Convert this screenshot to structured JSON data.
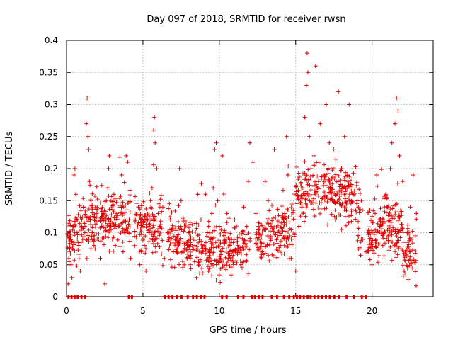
{
  "chart_data": {
    "type": "scatter",
    "title": "Day 097 of 2018, SRMTID for receiver rwsn",
    "xlabel": "GPS time / hours",
    "ylabel": "SRMTID / TECUs",
    "xlim": [
      0,
      24
    ],
    "ylim": [
      0,
      0.4
    ],
    "x_ticks": [
      0,
      5,
      10,
      15,
      20
    ],
    "x_tick_labels": [
      "0",
      "5",
      "10",
      "15",
      "20"
    ],
    "y_ticks": [
      0,
      0.05,
      0.1,
      0.15,
      0.2,
      0.25,
      0.3,
      0.35,
      0.4
    ],
    "y_tick_labels": [
      "0",
      "0.05",
      "0.1",
      "0.15",
      "0.2",
      "0.25",
      "0.3",
      "0.35",
      "0.4"
    ],
    "grid": true,
    "marker": "+",
    "series_color": "#e00000",
    "x_span": [
      0.05,
      22.9
    ],
    "points": [
      [
        0.1,
        0.02
      ],
      [
        0.15,
        0.06
      ],
      [
        0.2,
        0.09
      ],
      [
        0.3,
        0.05
      ],
      [
        0.35,
        0.03
      ],
      [
        0.45,
        0.11
      ],
      [
        0.5,
        0.19
      ],
      [
        0.55,
        0.2
      ],
      [
        0.6,
        0.16
      ],
      [
        0.7,
        0.12
      ],
      [
        0.8,
        0.08
      ],
      [
        0.9,
        0.04
      ],
      [
        1.0,
        0.12
      ],
      [
        1.1,
        0.14
      ],
      [
        1.2,
        0.1
      ],
      [
        1.3,
        0.27
      ],
      [
        1.35,
        0.31
      ],
      [
        1.4,
        0.25
      ],
      [
        1.45,
        0.23
      ],
      [
        1.5,
        0.18
      ],
      [
        1.6,
        0.15
      ],
      [
        1.7,
        0.1
      ],
      [
        1.8,
        0.08
      ],
      [
        1.9,
        0.12
      ],
      [
        2.0,
        0.14
      ],
      [
        2.1,
        0.09
      ],
      [
        2.2,
        0.06
      ],
      [
        2.3,
        0.11
      ],
      [
        2.4,
        0.13
      ],
      [
        2.5,
        0.02
      ],
      [
        2.6,
        0.15
      ],
      [
        2.7,
        0.17
      ],
      [
        2.75,
        0.2
      ],
      [
        2.8,
        0.22
      ],
      [
        2.9,
        0.12
      ],
      [
        3.0,
        0.09
      ],
      [
        3.1,
        0.16
      ],
      [
        3.2,
        0.08
      ],
      [
        3.3,
        0.13
      ],
      [
        3.4,
        0.11
      ],
      [
        3.5,
        0.14
      ],
      [
        3.6,
        0.19
      ],
      [
        3.7,
        0.07
      ],
      [
        3.8,
        0.1
      ],
      [
        3.9,
        0.22
      ],
      [
        4.0,
        0.21
      ],
      [
        4.1,
        0.12
      ],
      [
        4.2,
        0.06
      ],
      [
        4.5,
        0.12
      ],
      [
        4.6,
        0.09
      ],
      [
        4.7,
        0.14
      ],
      [
        4.8,
        0.05
      ],
      [
        4.9,
        0.07
      ],
      [
        5.0,
        0.11
      ],
      [
        5.1,
        0.08
      ],
      [
        5.2,
        0.04
      ],
      [
        5.3,
        0.12
      ],
      [
        5.4,
        0.1
      ],
      [
        5.5,
        0.15
      ],
      [
        5.6,
        0.17
      ],
      [
        5.7,
        0.26
      ],
      [
        5.75,
        0.28
      ],
      [
        5.8,
        0.24
      ],
      [
        5.9,
        0.2
      ],
      [
        6.0,
        0.13
      ],
      [
        6.1,
        0.11
      ],
      [
        6.2,
        0.09
      ],
      [
        6.3,
        0.14
      ],
      [
        6.4,
        0.06
      ],
      [
        6.6,
        0.1
      ],
      [
        6.8,
        0.12
      ],
      [
        7.0,
        0.07
      ],
      [
        7.2,
        0.09
      ],
      [
        7.4,
        0.2
      ],
      [
        7.5,
        0.15
      ],
      [
        7.7,
        0.05
      ],
      [
        7.9,
        0.08
      ],
      [
        8.0,
        0.1
      ],
      [
        8.1,
        0.06
      ],
      [
        8.3,
        0.09
      ],
      [
        8.5,
        0.03
      ],
      [
        8.6,
        0.16
      ],
      [
        8.8,
        0.12
      ],
      [
        9.0,
        0.08
      ],
      [
        9.1,
        0.16
      ],
      [
        9.3,
        0.11
      ],
      [
        9.5,
        0.13
      ],
      [
        9.6,
        0.17
      ],
      [
        9.7,
        0.23
      ],
      [
        9.8,
        0.24
      ],
      [
        9.9,
        0.15
      ],
      [
        10.0,
        0.11
      ],
      [
        10.1,
        0.07
      ],
      [
        10.2,
        0.22
      ],
      [
        10.3,
        0.1
      ],
      [
        10.5,
        0.13
      ],
      [
        10.6,
        0.06
      ],
      [
        10.8,
        0.09
      ],
      [
        11.0,
        0.12
      ],
      [
        11.2,
        0.08
      ],
      [
        11.4,
        0.05
      ],
      [
        11.6,
        0.14
      ],
      [
        11.8,
        0.11
      ],
      [
        11.9,
        0.18
      ],
      [
        12.0,
        0.24
      ],
      [
        12.2,
        0.21
      ],
      [
        12.4,
        0.13
      ],
      [
        12.6,
        0.09
      ],
      [
        12.8,
        0.07
      ],
      [
        13.0,
        0.18
      ],
      [
        13.2,
        0.15
      ],
      [
        13.4,
        0.11
      ],
      [
        13.6,
        0.23
      ],
      [
        13.8,
        0.1
      ],
      [
        14.0,
        0.08
      ],
      [
        14.2,
        0.12
      ],
      [
        14.4,
        0.25
      ],
      [
        14.5,
        0.19
      ],
      [
        14.7,
        0.06
      ],
      [
        14.9,
        0.09
      ],
      [
        15.0,
        0.04
      ],
      [
        15.2,
        0.11
      ],
      [
        15.4,
        0.14
      ],
      [
        15.6,
        0.28
      ],
      [
        15.7,
        0.33
      ],
      [
        15.75,
        0.38
      ],
      [
        15.8,
        0.35
      ],
      [
        15.9,
        0.25
      ],
      [
        16.0,
        0.2
      ],
      [
        16.2,
        0.22
      ],
      [
        16.3,
        0.36
      ],
      [
        16.4,
        0.17
      ],
      [
        16.6,
        0.27
      ],
      [
        16.8,
        0.19
      ],
      [
        17.0,
        0.3
      ],
      [
        17.2,
        0.24
      ],
      [
        17.4,
        0.15
      ],
      [
        17.6,
        0.12
      ],
      [
        17.8,
        0.32
      ],
      [
        18.0,
        0.2
      ],
      [
        18.2,
        0.25
      ],
      [
        18.4,
        0.18
      ],
      [
        18.5,
        0.3
      ],
      [
        18.7,
        0.16
      ],
      [
        18.9,
        0.12
      ],
      [
        19.1,
        0.14
      ],
      [
        19.3,
        0.09
      ],
      [
        19.6,
        0.07
      ],
      [
        19.8,
        0.1
      ],
      [
        20.0,
        0.05
      ],
      [
        20.2,
        0.13
      ],
      [
        20.3,
        0.19
      ],
      [
        20.5,
        0.11
      ],
      [
        20.7,
        0.08
      ],
      [
        20.9,
        0.16
      ],
      [
        21.0,
        0.14
      ],
      [
        21.2,
        0.2
      ],
      [
        21.3,
        0.24
      ],
      [
        21.5,
        0.27
      ],
      [
        21.6,
        0.31
      ],
      [
        21.7,
        0.29
      ],
      [
        21.8,
        0.22
      ],
      [
        22.0,
        0.18
      ],
      [
        22.1,
        0.04
      ],
      [
        22.3,
        0.1
      ],
      [
        22.5,
        0.14
      ],
      [
        22.7,
        0.19
      ],
      [
        22.9,
        0.13
      ]
    ],
    "zero_points_x": [
      0.1,
      0.3,
      0.5,
      0.7,
      0.95,
      1.2,
      4.05,
      4.25,
      6.4,
      6.65,
      6.9,
      7.2,
      7.5,
      7.9,
      8.25,
      8.5,
      8.75,
      9.0,
      10.15,
      10.45,
      11.2,
      11.55,
      12.1,
      12.3,
      12.55,
      12.8,
      13.4,
      13.75,
      14.2,
      14.55,
      14.85,
      15.05,
      15.25,
      15.5,
      15.75,
      15.95,
      16.2,
      16.45,
      16.7,
      16.95,
      17.2,
      17.5,
      17.8,
      18.3,
      18.8,
      19.3,
      19.55
    ]
  }
}
